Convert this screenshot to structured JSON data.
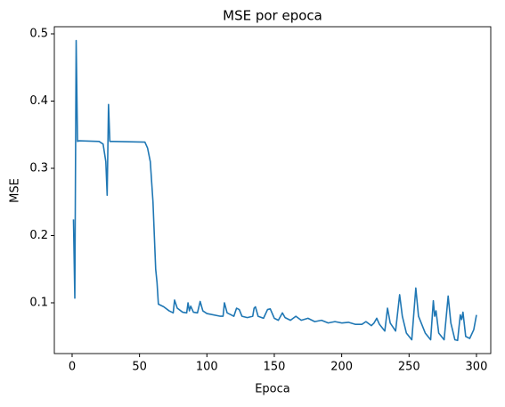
{
  "chart_data": {
    "type": "line",
    "title": "MSE por epoca",
    "x_label": "Epoca",
    "y_label": "MSE",
    "x": [
      1,
      2,
      3,
      4,
      5,
      20,
      23,
      25,
      26,
      27,
      28,
      30,
      54,
      56,
      58,
      60,
      62,
      63,
      64,
      68,
      72,
      75,
      76,
      78,
      82,
      85,
      86,
      87,
      88,
      90,
      93,
      95,
      97,
      100,
      110,
      112,
      113,
      115,
      118,
      120,
      122,
      124,
      126,
      130,
      134,
      135,
      136,
      138,
      142,
      145,
      147,
      150,
      153,
      156,
      158,
      162,
      166,
      170,
      175,
      180,
      185,
      190,
      195,
      200,
      205,
      210,
      215,
      218,
      222,
      224,
      226,
      228,
      232,
      234,
      236,
      240,
      243,
      245,
      248,
      252,
      255,
      257,
      262,
      266,
      268,
      269,
      270,
      272,
      276,
      279,
      281,
      284,
      286,
      288,
      289,
      290,
      292,
      295,
      298,
      300
    ],
    "series": [
      {
        "name": "MSE",
        "color": "#1f77b4",
        "values": [
          0.224,
          0.107,
          0.49,
          0.34,
          0.341,
          0.34,
          0.336,
          0.31,
          0.26,
          0.395,
          0.34,
          0.34,
          0.339,
          0.33,
          0.31,
          0.25,
          0.15,
          0.13,
          0.098,
          0.094,
          0.088,
          0.085,
          0.104,
          0.092,
          0.086,
          0.085,
          0.1,
          0.088,
          0.095,
          0.086,
          0.085,
          0.102,
          0.088,
          0.084,
          0.08,
          0.08,
          0.1,
          0.085,
          0.082,
          0.08,
          0.092,
          0.09,
          0.08,
          0.078,
          0.08,
          0.092,
          0.094,
          0.08,
          0.077,
          0.09,
          0.091,
          0.077,
          0.074,
          0.085,
          0.078,
          0.074,
          0.08,
          0.074,
          0.077,
          0.072,
          0.074,
          0.07,
          0.072,
          0.07,
          0.071,
          0.068,
          0.068,
          0.072,
          0.066,
          0.07,
          0.077,
          0.068,
          0.058,
          0.092,
          0.07,
          0.058,
          0.112,
          0.08,
          0.055,
          0.045,
          0.122,
          0.08,
          0.055,
          0.045,
          0.103,
          0.08,
          0.088,
          0.055,
          0.045,
          0.11,
          0.07,
          0.045,
          0.044,
          0.082,
          0.075,
          0.086,
          0.05,
          0.047,
          0.06,
          0.082
        ]
      }
    ],
    "xlim": [
      -13.2,
      310.6
    ],
    "xticks": [
      0,
      50,
      100,
      150,
      200,
      250,
      300
    ],
    "ylim": [
      0.0245,
      0.5106
    ],
    "yticks": [
      0.1,
      0.2,
      0.3,
      0.4,
      0.5
    ],
    "grid": false
  }
}
